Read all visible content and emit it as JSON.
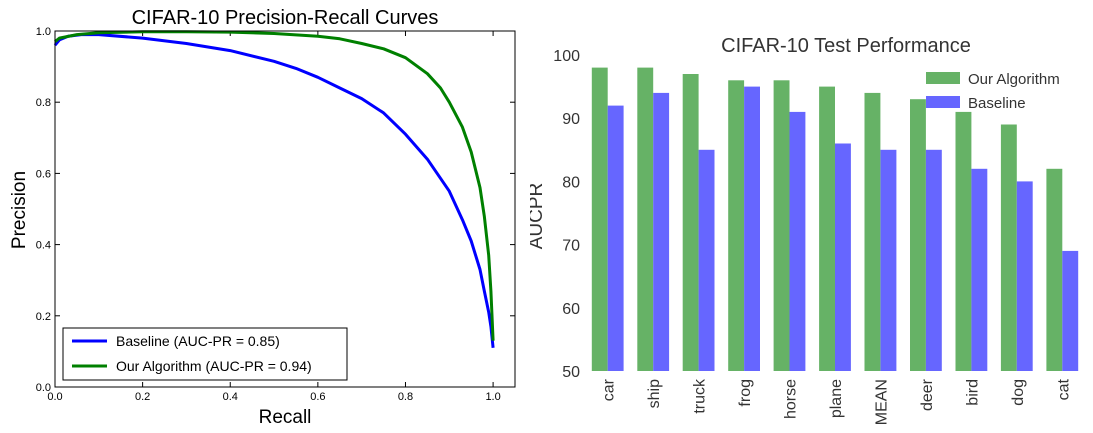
{
  "chart_data": [
    {
      "type": "line",
      "title": "CIFAR-10 Precision-Recall Curves",
      "xlabel": "Recall",
      "ylabel": "Precision",
      "xlim": [
        0.0,
        1.05
      ],
      "ylim": [
        0.0,
        1.0
      ],
      "xticks": [
        "0.0",
        "0.2",
        "0.4",
        "0.6",
        "0.8",
        "1.0"
      ],
      "yticks": [
        "0.0",
        "0.2",
        "0.4",
        "0.6",
        "0.8",
        "1.0"
      ],
      "grid": false,
      "legend_position": "lower-left",
      "series": [
        {
          "name": "Baseline (AUC-PR = 0.85)",
          "color": "#0000ff",
          "x": [
            0.0,
            0.01,
            0.03,
            0.06,
            0.1,
            0.2,
            0.3,
            0.4,
            0.5,
            0.55,
            0.6,
            0.65,
            0.7,
            0.75,
            0.8,
            0.85,
            0.9,
            0.93,
            0.95,
            0.97,
            0.98,
            0.99,
            0.995,
            1.0
          ],
          "y": [
            0.96,
            0.975,
            0.985,
            0.99,
            0.99,
            0.98,
            0.965,
            0.945,
            0.915,
            0.895,
            0.87,
            0.84,
            0.81,
            0.77,
            0.71,
            0.64,
            0.55,
            0.47,
            0.41,
            0.33,
            0.27,
            0.21,
            0.17,
            0.11
          ]
        },
        {
          "name": "Our Algorithm (AUC-PR = 0.94)",
          "color": "#008000",
          "x": [
            0.0,
            0.01,
            0.05,
            0.1,
            0.2,
            0.3,
            0.4,
            0.5,
            0.6,
            0.65,
            0.7,
            0.75,
            0.8,
            0.85,
            0.88,
            0.9,
            0.93,
            0.95,
            0.97,
            0.98,
            0.99,
            0.995,
            1.0
          ],
          "y": [
            0.97,
            0.98,
            0.99,
            0.995,
            0.998,
            0.998,
            0.997,
            0.993,
            0.985,
            0.978,
            0.965,
            0.95,
            0.925,
            0.88,
            0.84,
            0.8,
            0.73,
            0.66,
            0.56,
            0.48,
            0.37,
            0.27,
            0.13
          ]
        }
      ]
    },
    {
      "type": "bar",
      "title": "CIFAR-10 Test Performance",
      "xlabel": "",
      "ylabel": "AUCPR",
      "ylim": [
        50,
        100
      ],
      "yticks": [
        "50",
        "60",
        "70",
        "80",
        "90",
        "100"
      ],
      "grid": false,
      "legend_position": "top-right",
      "categories": [
        "car",
        "ship",
        "truck",
        "frog",
        "horse",
        "plane",
        "MEAN",
        "deer",
        "bird",
        "dog",
        "cat"
      ],
      "series": [
        {
          "name": "Our Algorithm",
          "color": "#66b266",
          "values": [
            98,
            98,
            97,
            96,
            96,
            95,
            94,
            93,
            91,
            89,
            82
          ]
        },
        {
          "name": "Baseline",
          "color": "#6666ff",
          "values": [
            92,
            94,
            85,
            95,
            91,
            86,
            85,
            85,
            82,
            80,
            69
          ]
        }
      ]
    }
  ]
}
